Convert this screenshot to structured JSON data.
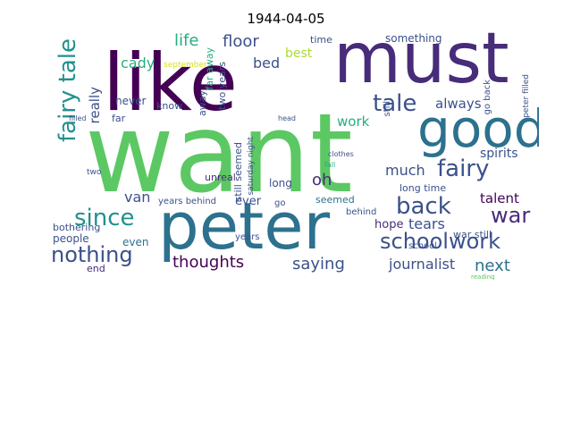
{
  "title": "1944-04-05",
  "words": {
    "want": "want",
    "like": "like",
    "must": "must",
    "peter": "peter",
    "good": "good",
    "fairy_tale": "fairy tale",
    "fairy": "fairy",
    "back": "back",
    "tale": "tale",
    "since": "since",
    "schoolwork": "schoolwork",
    "nothing": "nothing",
    "war": "war",
    "thoughts": "thoughts",
    "saying": "saying",
    "journalist": "journalist",
    "next": "next",
    "tears": "tears",
    "talent": "talent",
    "much": "much",
    "floor": "floor",
    "life": "life",
    "bed": "bed",
    "best": "best",
    "work": "work",
    "always": "always",
    "oh": "oh",
    "van": "van",
    "cady": "cady",
    "really": "really",
    "spirits": "spirits",
    "hope": "hope",
    "people": "people",
    "even": "even",
    "end": "end",
    "never": "never",
    "unreal": "unreal",
    "years_behind": "years behind",
    "long_time": "long time",
    "something": "something",
    "war_still": "war still",
    "still_seemed": "still seemed",
    "two_years": "two years",
    "far_away": "far away",
    "ever": "ever",
    "long": "long",
    "seemed": "seemed",
    "bothering": "bothering",
    "behind": "behind",
    "school": "school",
    "time": "time",
    "know": "know",
    "september": "september",
    "away": "away",
    "far": "far",
    "years": "years",
    "go_back": "go back",
    "still": "still",
    "peter_filled": "peter filled",
    "saturday_night": "saturday night",
    "two": "two",
    "go": "go",
    "filled": "filled",
    "clothes": "clothes",
    "fall": "fall",
    "head": "head",
    "reading": "reading"
  }
}
